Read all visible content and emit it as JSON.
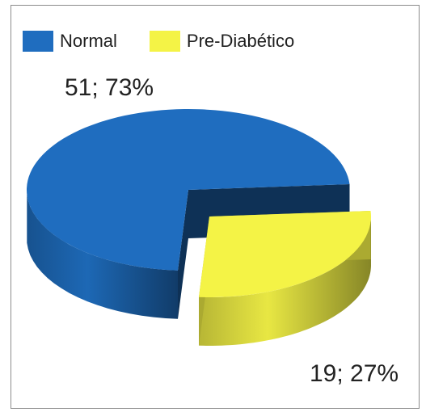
{
  "chart_data": {
    "type": "pie",
    "style": "3d",
    "title": "",
    "legend_position": "top-left",
    "categories": [
      "Normal",
      "Pre-Diabético"
    ],
    "values": [
      51,
      19
    ],
    "percentages": [
      73,
      27
    ],
    "data_labels": [
      "51; 73%",
      "19; 27%"
    ],
    "colors": [
      "#1f6dbf",
      "#f4f346"
    ]
  }
}
